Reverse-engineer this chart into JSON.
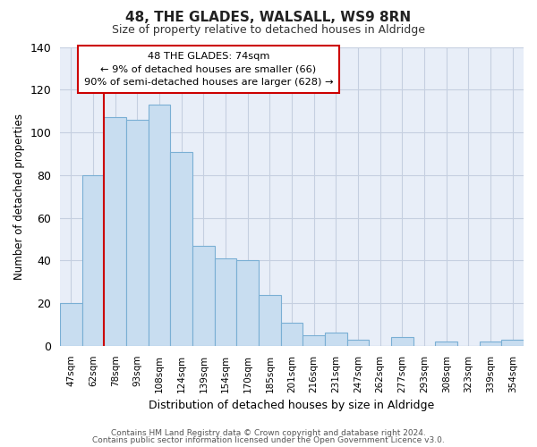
{
  "title": "48, THE GLADES, WALSALL, WS9 8RN",
  "subtitle": "Size of property relative to detached houses in Aldridge",
  "xlabel": "Distribution of detached houses by size in Aldridge",
  "ylabel": "Number of detached properties",
  "bar_labels": [
    "47sqm",
    "62sqm",
    "78sqm",
    "93sqm",
    "108sqm",
    "124sqm",
    "139sqm",
    "154sqm",
    "170sqm",
    "185sqm",
    "201sqm",
    "216sqm",
    "231sqm",
    "247sqm",
    "262sqm",
    "277sqm",
    "293sqm",
    "308sqm",
    "323sqm",
    "339sqm",
    "354sqm"
  ],
  "bar_values": [
    20,
    80,
    107,
    106,
    113,
    91,
    47,
    41,
    40,
    24,
    11,
    5,
    6,
    3,
    0,
    4,
    0,
    2,
    0,
    2,
    3
  ],
  "bar_color": "#c8ddf0",
  "bar_edge_color": "#7aafd4",
  "vline_color": "#cc0000",
  "vline_index": 2,
  "ylim": [
    0,
    140
  ],
  "yticks": [
    0,
    20,
    40,
    60,
    80,
    100,
    120,
    140
  ],
  "annotation_line1": "48 THE GLADES: 74sqm",
  "annotation_line2": "← 9% of detached houses are smaller (66)",
  "annotation_line3": "90% of semi-detached houses are larger (628) →",
  "footer_line1": "Contains HM Land Registry data © Crown copyright and database right 2024.",
  "footer_line2": "Contains public sector information licensed under the Open Government Licence v3.0.",
  "background_color": "#ffffff",
  "axes_bg_color": "#e8eef8",
  "grid_color": "#c5cfe0"
}
